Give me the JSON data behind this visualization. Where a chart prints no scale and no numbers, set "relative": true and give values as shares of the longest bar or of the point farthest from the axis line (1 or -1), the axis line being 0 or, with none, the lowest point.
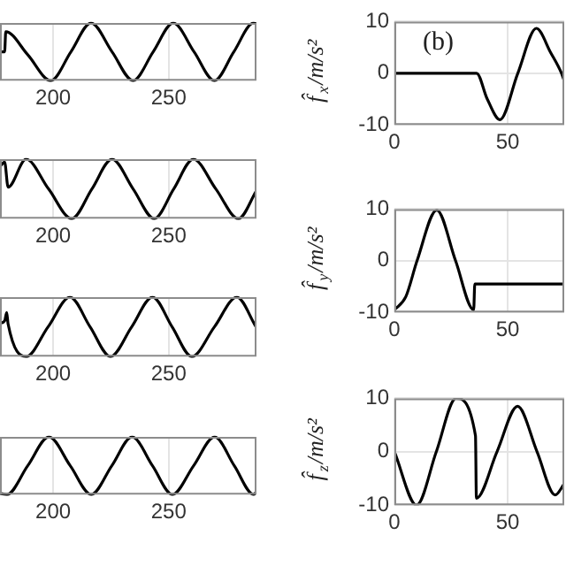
{
  "chart_data": [
    {
      "type": "line",
      "relative": true,
      "color": "#000000",
      "xlim": [
        177,
        288
      ],
      "xticks": [
        200,
        250
      ],
      "grid": "x",
      "x": [
        177,
        179,
        179.5,
        189,
        199,
        207.7,
        216.4,
        225.5,
        234.6,
        243.3,
        252,
        261,
        269.8,
        278.2,
        286.7,
        288
      ],
      "values": [
        0.5,
        0.5,
        0.85,
        0.45,
        0,
        0.5,
        1,
        0.5,
        0,
        0.5,
        1,
        0.5,
        0,
        0.5,
        1,
        0.98
      ]
    },
    {
      "type": "line",
      "relative": true,
      "color": "#000000",
      "xlim": [
        177,
        288
      ],
      "xticks": [
        200,
        250
      ],
      "grid": "x",
      "x": [
        177,
        179,
        180.5,
        188.3,
        198,
        208.1,
        216.8,
        225.5,
        234.6,
        243.8,
        252.2,
        260.7,
        270.4,
        280.2,
        288
      ],
      "values": [
        0.88,
        0.95,
        0.53,
        1,
        0.5,
        0,
        0.5,
        1,
        0.5,
        0,
        0.5,
        1,
        0.5,
        0,
        0.47
      ]
    },
    {
      "type": "line",
      "relative": true,
      "color": "#000000",
      "xlim": [
        177,
        288
      ],
      "xticks": [
        200,
        250
      ],
      "grid": "x",
      "x": [
        177,
        179,
        179.9,
        180.5,
        188.3,
        197.8,
        207.3,
        216,
        224.8,
        234,
        243,
        251.5,
        260,
        269.8,
        279.5,
        287.8
      ],
      "values": [
        0.56,
        0.6,
        0.74,
        0.55,
        0,
        0.5,
        1,
        0.5,
        0,
        0.5,
        1,
        0.5,
        0,
        0.5,
        1,
        0.5
      ]
    },
    {
      "type": "line",
      "relative": true,
      "color": "#000000",
      "xlim": [
        177,
        288
      ],
      "xticks": [
        200,
        250
      ],
      "grid": "x",
      "x": [
        177,
        180,
        189,
        198.2,
        207.4,
        216.5,
        225.4,
        234.2,
        243,
        251.6,
        260.8,
        269.9,
        278.4,
        286.8,
        288
      ],
      "values": [
        0.02,
        0,
        0.5,
        1,
        0.5,
        0,
        0.5,
        1,
        0.5,
        0,
        0.5,
        1,
        0.5,
        0,
        0.05
      ]
    },
    {
      "type": "line",
      "color": "#000000",
      "xlim": [
        0,
        75
      ],
      "xticks": [
        0,
        50
      ],
      "ylim": [
        -10,
        10
      ],
      "yticks": [
        -10,
        0,
        10
      ],
      "grid": true,
      "ylabel": "f̂$_{x}$/m/s²",
      "annotations": [
        "(b)"
      ],
      "x": [
        0,
        36.3,
        41,
        46.6,
        54.5,
        62.7,
        69,
        73.8,
        75
      ],
      "values": [
        0,
        0,
        -5,
        -9,
        0,
        8.7,
        4,
        0,
        -1.5
      ]
    },
    {
      "type": "line",
      "color": "#000000",
      "xlim": [
        0,
        75
      ],
      "xticks": [
        0,
        50
      ],
      "ylim": [
        -10,
        10
      ],
      "yticks": [
        -10,
        0,
        10
      ],
      "grid": true,
      "ylabel": "f̂$_{y}$/m/s²",
      "x": [
        0,
        5,
        10,
        18.7,
        27,
        35,
        35.5,
        75
      ],
      "values": [
        -9.5,
        -7,
        0,
        9.8,
        0,
        -9.5,
        -4.5,
        -4.5
      ]
    },
    {
      "type": "line",
      "color": "#000000",
      "xlim": [
        0,
        75
      ],
      "xticks": [
        0,
        50
      ],
      "ylim": [
        -10,
        10
      ],
      "yticks": [
        -10,
        0,
        10
      ],
      "grid": true,
      "ylabel": "f̂$_{z}$/m/s²",
      "x": [
        0,
        9.8,
        18.5,
        27.2,
        35.8,
        36.2,
        45.3,
        54.4,
        63,
        71,
        75
      ],
      "values": [
        0,
        -10,
        0,
        10,
        3,
        -8.7,
        0,
        8.5,
        0,
        -8.1,
        -6
      ]
    }
  ]
}
